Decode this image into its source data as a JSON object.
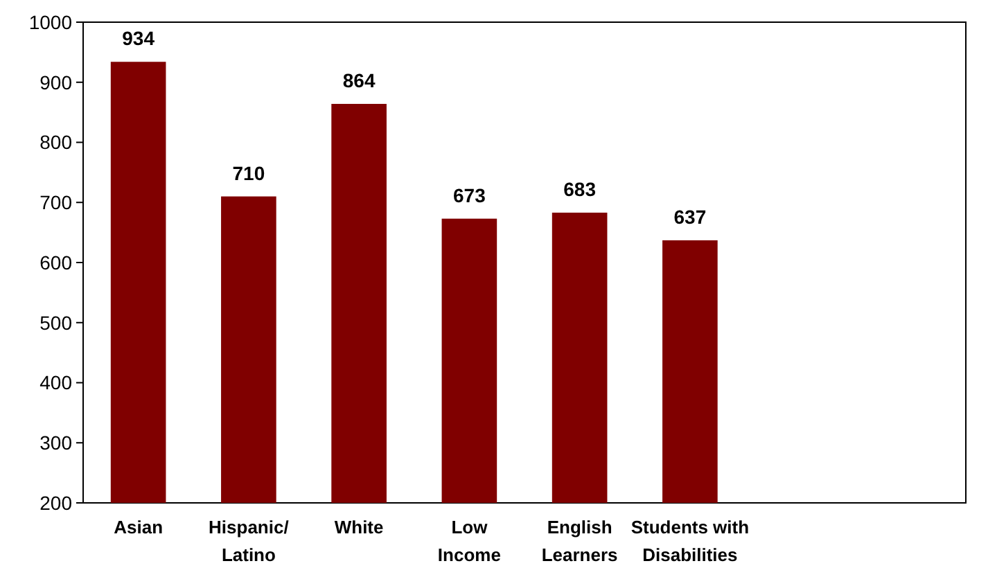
{
  "chart_data": {
    "type": "bar",
    "categories": [
      "Asian",
      "Hispanic/\nLatino",
      "White",
      "Low\nIncome",
      "English\nLearners",
      "Students with\nDisabilities",
      null,
      null
    ],
    "values": [
      934,
      710,
      864,
      673,
      683,
      637,
      null,
      null
    ],
    "color": "#800000",
    "ylim": [
      200,
      1000
    ],
    "yticks": [
      200,
      300,
      400,
      500,
      600,
      700,
      800,
      900,
      1000
    ],
    "data_labels": true,
    "grid": false
  }
}
